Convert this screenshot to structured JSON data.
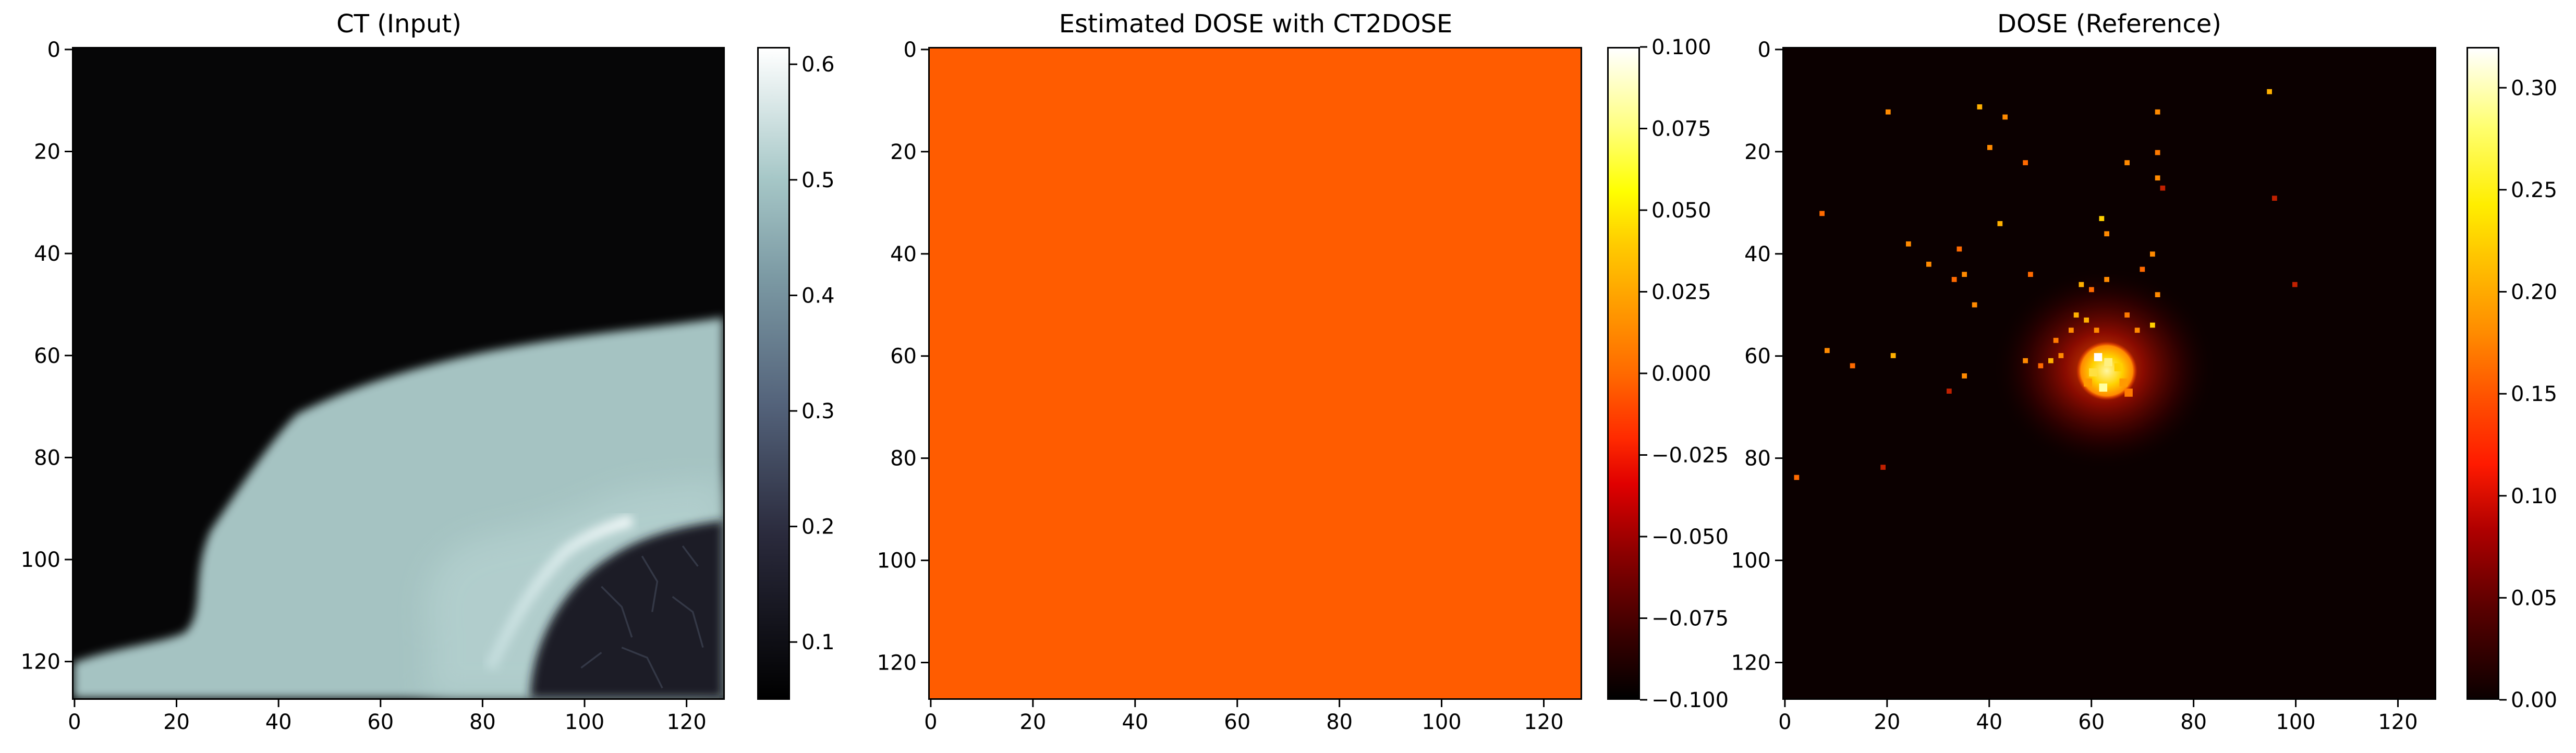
{
  "panels": [
    {
      "title": "CT (Input)",
      "x_ticks": [
        "0",
        "20",
        "40",
        "60",
        "80",
        "100",
        "120"
      ],
      "y_ticks": [
        "0",
        "20",
        "40",
        "60",
        "80",
        "100",
        "120"
      ],
      "colorbar": {
        "ticks": [
          "0.1",
          "0.2",
          "0.3",
          "0.4",
          "0.5",
          "0.6"
        ],
        "range": [
          0.05,
          0.615
        ],
        "colormap": "bone"
      }
    },
    {
      "title": "Estimated DOSE with CT2DOSE",
      "x_ticks": [
        "0",
        "20",
        "40",
        "60",
        "80",
        "100",
        "120"
      ],
      "y_ticks": [
        "0",
        "20",
        "40",
        "60",
        "80",
        "100",
        "120"
      ],
      "fill_color": "#ff5c00",
      "colorbar": {
        "ticks": [
          "0.100",
          "0.075",
          "0.050",
          "0.025",
          "0.000",
          "−0.025",
          "−0.050",
          "−0.075",
          "−0.100"
        ],
        "range": [
          -0.1,
          0.1
        ],
        "colormap": "hot"
      }
    },
    {
      "title": "DOSE (Reference)",
      "x_ticks": [
        "0",
        "20",
        "40",
        "60",
        "80",
        "100",
        "120"
      ],
      "y_ticks": [
        "0",
        "20",
        "40",
        "60",
        "80",
        "100",
        "120"
      ],
      "colorbar": {
        "ticks": [
          "0.30",
          "0.25",
          "0.20",
          "0.15",
          "0.10",
          "0.05",
          "0.00"
        ],
        "range": [
          0,
          0.32
        ],
        "colormap": "hot"
      }
    }
  ]
}
